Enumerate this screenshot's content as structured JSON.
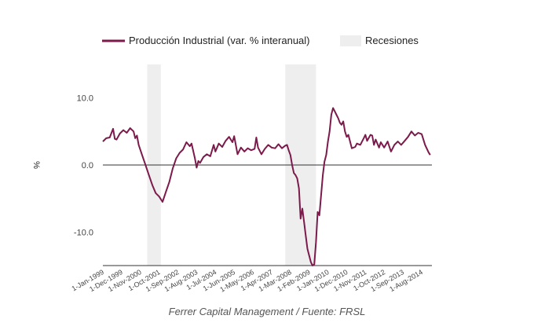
{
  "caption": "Ferrer Capital Management / Fuente: FRSL",
  "chart_data": {
    "type": "line",
    "title": "",
    "xlabel": "",
    "ylabel": "%",
    "ylim": [
      -15,
      15
    ],
    "xlim": [
      "1999-01",
      "2015-02"
    ],
    "legend_position": "top",
    "grid": false,
    "y_ticks": [
      {
        "value": 10,
        "label": "10.0"
      },
      {
        "value": 0,
        "label": "0.0"
      },
      {
        "value": -10,
        "label": "-10.0"
      }
    ],
    "x_ticks": [
      {
        "date": "1999-01",
        "label": "1-Jan-1999"
      },
      {
        "date": "1999-12",
        "label": "1-Dec-1999"
      },
      {
        "date": "2000-11",
        "label": "1-Nov-2000"
      },
      {
        "date": "2001-10",
        "label": "1-Oct-2001"
      },
      {
        "date": "2002-09",
        "label": "1-Sep-2002"
      },
      {
        "date": "2003-08",
        "label": "1-Aug-2003"
      },
      {
        "date": "2004-07",
        "label": "1-Jul-2004"
      },
      {
        "date": "2005-06",
        "label": "1-Jun-2005"
      },
      {
        "date": "2006-05",
        "label": "1-May-2006"
      },
      {
        "date": "2007-04",
        "label": "1-Apr-2007"
      },
      {
        "date": "2008-03",
        "label": "1-Mar-2008"
      },
      {
        "date": "2009-02",
        "label": "1-Feb-2009"
      },
      {
        "date": "2010-01",
        "label": "1-Jan-2010"
      },
      {
        "date": "2010-12",
        "label": "1-Dec-2010"
      },
      {
        "date": "2011-11",
        "label": "1-Nov-2011"
      },
      {
        "date": "2012-10",
        "label": "1-Oct-2012"
      },
      {
        "date": "2013-09",
        "label": "1-Sep-2013"
      },
      {
        "date": "2014-08",
        "label": "1-Aug-2014"
      }
    ],
    "recessions": [
      {
        "start": "2001-03",
        "end": "2001-11"
      },
      {
        "start": "2007-12",
        "end": "2009-06"
      }
    ],
    "legend": [
      {
        "label": "Producción Industrial (var. % interanual)",
        "kind": "line",
        "color": "#7b1a4b"
      },
      {
        "label": "Recesiones",
        "kind": "area",
        "color": "#eeeeee"
      }
    ],
    "series": [
      {
        "name": "Producción Industrial (var. % interanual)",
        "color": "#7b1a4b",
        "points": [
          [
            "1999-01",
            3.5
          ],
          [
            "1999-03",
            4.0
          ],
          [
            "1999-05",
            4.1
          ],
          [
            "1999-07",
            5.4
          ],
          [
            "1999-08",
            3.9
          ],
          [
            "1999-09",
            3.8
          ],
          [
            "1999-11",
            4.7
          ],
          [
            "2000-01",
            5.2
          ],
          [
            "2000-03",
            4.8
          ],
          [
            "2000-05",
            5.5
          ],
          [
            "2000-07",
            5.0
          ],
          [
            "2000-08",
            4.0
          ],
          [
            "2000-09",
            4.4
          ],
          [
            "2000-10",
            3.0
          ],
          [
            "2000-12",
            1.5
          ],
          [
            "2001-02",
            0.0
          ],
          [
            "2001-04",
            -1.5
          ],
          [
            "2001-06",
            -3.0
          ],
          [
            "2001-08",
            -4.2
          ],
          [
            "2001-10",
            -4.7
          ],
          [
            "2001-12",
            -5.5
          ],
          [
            "2002-02",
            -4.0
          ],
          [
            "2002-04",
            -2.5
          ],
          [
            "2002-06",
            -0.5
          ],
          [
            "2002-08",
            1.0
          ],
          [
            "2002-10",
            1.8
          ],
          [
            "2002-12",
            2.3
          ],
          [
            "2003-02",
            3.4
          ],
          [
            "2003-04",
            2.8
          ],
          [
            "2003-05",
            3.2
          ],
          [
            "2003-07",
            1.0
          ],
          [
            "2003-08",
            -0.4
          ],
          [
            "2003-09",
            0.6
          ],
          [
            "2003-10",
            0.3
          ],
          [
            "2003-12",
            1.2
          ],
          [
            "2004-02",
            1.6
          ],
          [
            "2004-04",
            1.3
          ],
          [
            "2004-06",
            3.0
          ],
          [
            "2004-07",
            2.0
          ],
          [
            "2004-09",
            3.2
          ],
          [
            "2004-11",
            2.7
          ],
          [
            "2005-01",
            3.6
          ],
          [
            "2005-03",
            4.2
          ],
          [
            "2005-05",
            3.4
          ],
          [
            "2005-06",
            4.3
          ],
          [
            "2005-08",
            1.6
          ],
          [
            "2005-10",
            2.6
          ],
          [
            "2005-12",
            2.0
          ],
          [
            "2006-02",
            2.5
          ],
          [
            "2006-04",
            2.2
          ],
          [
            "2006-06",
            2.4
          ],
          [
            "2006-07",
            4.1
          ],
          [
            "2006-08",
            2.6
          ],
          [
            "2006-10",
            1.6
          ],
          [
            "2006-12",
            2.4
          ],
          [
            "2007-02",
            3.0
          ],
          [
            "2007-04",
            2.6
          ],
          [
            "2007-06",
            2.5
          ],
          [
            "2007-08",
            3.1
          ],
          [
            "2007-10",
            2.5
          ],
          [
            "2007-12",
            2.9
          ],
          [
            "2008-01",
            3.0
          ],
          [
            "2008-02",
            2.2
          ],
          [
            "2008-03",
            1.5
          ],
          [
            "2008-04",
            0.0
          ],
          [
            "2008-05",
            -1.2
          ],
          [
            "2008-06",
            -1.5
          ],
          [
            "2008-07",
            -2.0
          ],
          [
            "2008-08",
            -3.5
          ],
          [
            "2008-09",
            -8.0
          ],
          [
            "2008-10",
            -6.5
          ],
          [
            "2008-11",
            -8.5
          ],
          [
            "2008-12",
            -10.5
          ],
          [
            "2009-01",
            -12.5
          ],
          [
            "2009-02",
            -13.5
          ],
          [
            "2009-03",
            -14.5
          ],
          [
            "2009-04",
            -15.0
          ],
          [
            "2009-05",
            -14.8
          ],
          [
            "2009-06",
            -11.5
          ],
          [
            "2009-07",
            -7.0
          ],
          [
            "2009-08",
            -7.5
          ],
          [
            "2009-09",
            -4.5
          ],
          [
            "2009-10",
            -1.5
          ],
          [
            "2009-11",
            0.5
          ],
          [
            "2009-12",
            1.5
          ],
          [
            "2010-01",
            3.5
          ],
          [
            "2010-02",
            5.0
          ],
          [
            "2010-03",
            7.5
          ],
          [
            "2010-04",
            8.5
          ],
          [
            "2010-05",
            8.0
          ],
          [
            "2010-06",
            7.5
          ],
          [
            "2010-07",
            7.0
          ],
          [
            "2010-08",
            6.3
          ],
          [
            "2010-09",
            6.0
          ],
          [
            "2010-10",
            6.5
          ],
          [
            "2010-11",
            5.0
          ],
          [
            "2010-12",
            4.2
          ],
          [
            "2011-01",
            4.5
          ],
          [
            "2011-03",
            2.5
          ],
          [
            "2011-05",
            2.7
          ],
          [
            "2011-06",
            3.2
          ],
          [
            "2011-08",
            3.0
          ],
          [
            "2011-10",
            4.0
          ],
          [
            "2011-11",
            4.5
          ],
          [
            "2011-12",
            3.6
          ],
          [
            "2012-02",
            4.5
          ],
          [
            "2012-03",
            4.4
          ],
          [
            "2012-04",
            3.0
          ],
          [
            "2012-05",
            3.8
          ],
          [
            "2012-07",
            2.6
          ],
          [
            "2012-08",
            3.4
          ],
          [
            "2012-10",
            2.6
          ],
          [
            "2012-12",
            3.5
          ],
          [
            "2013-02",
            2.0
          ],
          [
            "2013-04",
            3.0
          ],
          [
            "2013-06",
            3.5
          ],
          [
            "2013-08",
            3.0
          ],
          [
            "2013-10",
            3.6
          ],
          [
            "2013-12",
            4.2
          ],
          [
            "2014-02",
            5.0
          ],
          [
            "2014-04",
            4.4
          ],
          [
            "2014-06",
            4.8
          ],
          [
            "2014-08",
            4.6
          ],
          [
            "2014-10",
            3.0
          ],
          [
            "2014-12",
            1.9
          ],
          [
            "2015-01",
            1.5
          ]
        ]
      }
    ]
  }
}
